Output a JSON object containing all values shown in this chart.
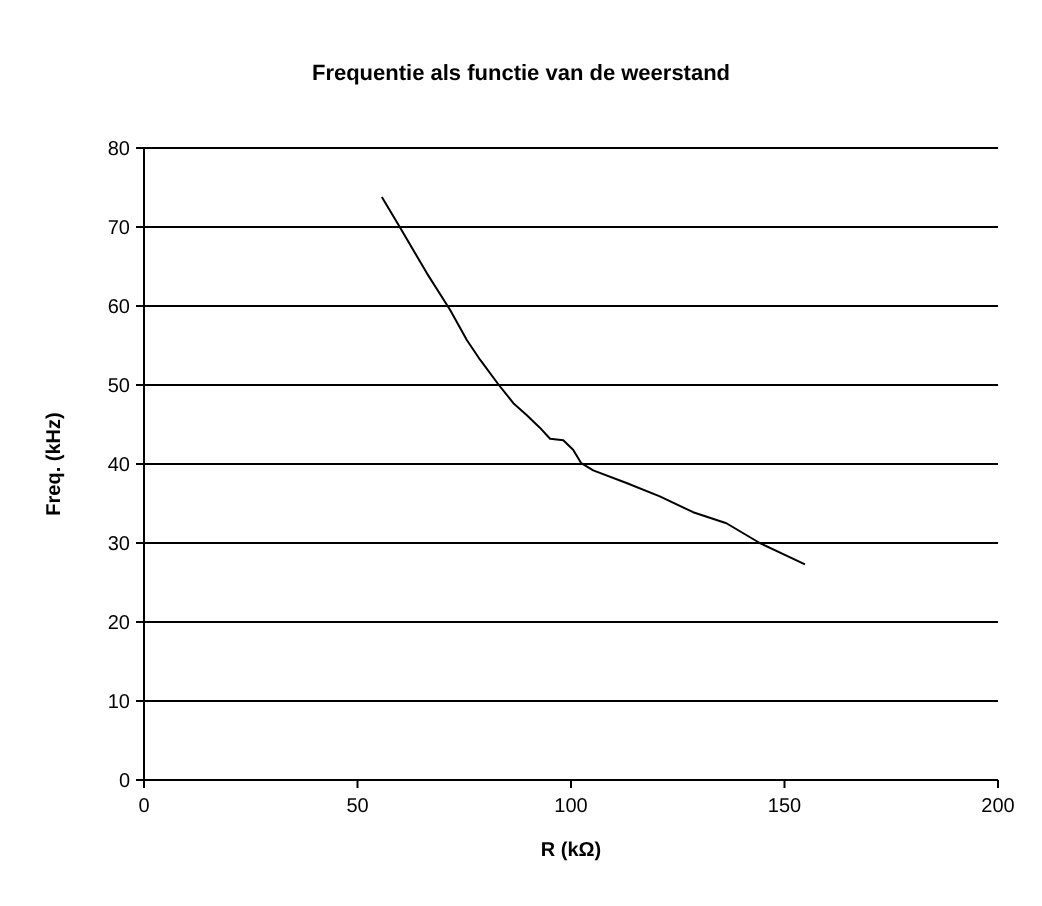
{
  "chart_data": {
    "type": "line",
    "title": "Frequentie als functie van de weerstand",
    "xlabel": "R (kΩ)",
    "ylabel": "Freq. (kHz)",
    "xlim": [
      0,
      200
    ],
    "xticks": [
      0,
      50,
      100,
      150,
      200
    ],
    "ylim": [
      0,
      80
    ],
    "yticks": [
      0,
      10,
      20,
      30,
      40,
      50,
      60,
      70,
      80
    ],
    "grid": "y",
    "marker": "none",
    "line_style": "solid",
    "series": [
      {
        "color": "#000000",
        "x": [
          55.7,
          60,
          66.3,
          71.7,
          75.6,
          78.7,
          83.1,
          86.5,
          89.6,
          92.7,
          95.1,
          98.2,
          100.5,
          102.4,
          105.2,
          113,
          120.8,
          128.6,
          136.4,
          144.2,
          154.8
        ],
        "values": [
          73.8,
          69.9,
          64.1,
          59.5,
          55.7,
          53.2,
          50,
          47.7,
          46.2,
          44.6,
          43.2,
          43,
          41.8,
          40.1,
          39.2,
          37.6,
          35.9,
          33.9,
          32.5,
          30,
          27.3
        ]
      }
    ]
  }
}
